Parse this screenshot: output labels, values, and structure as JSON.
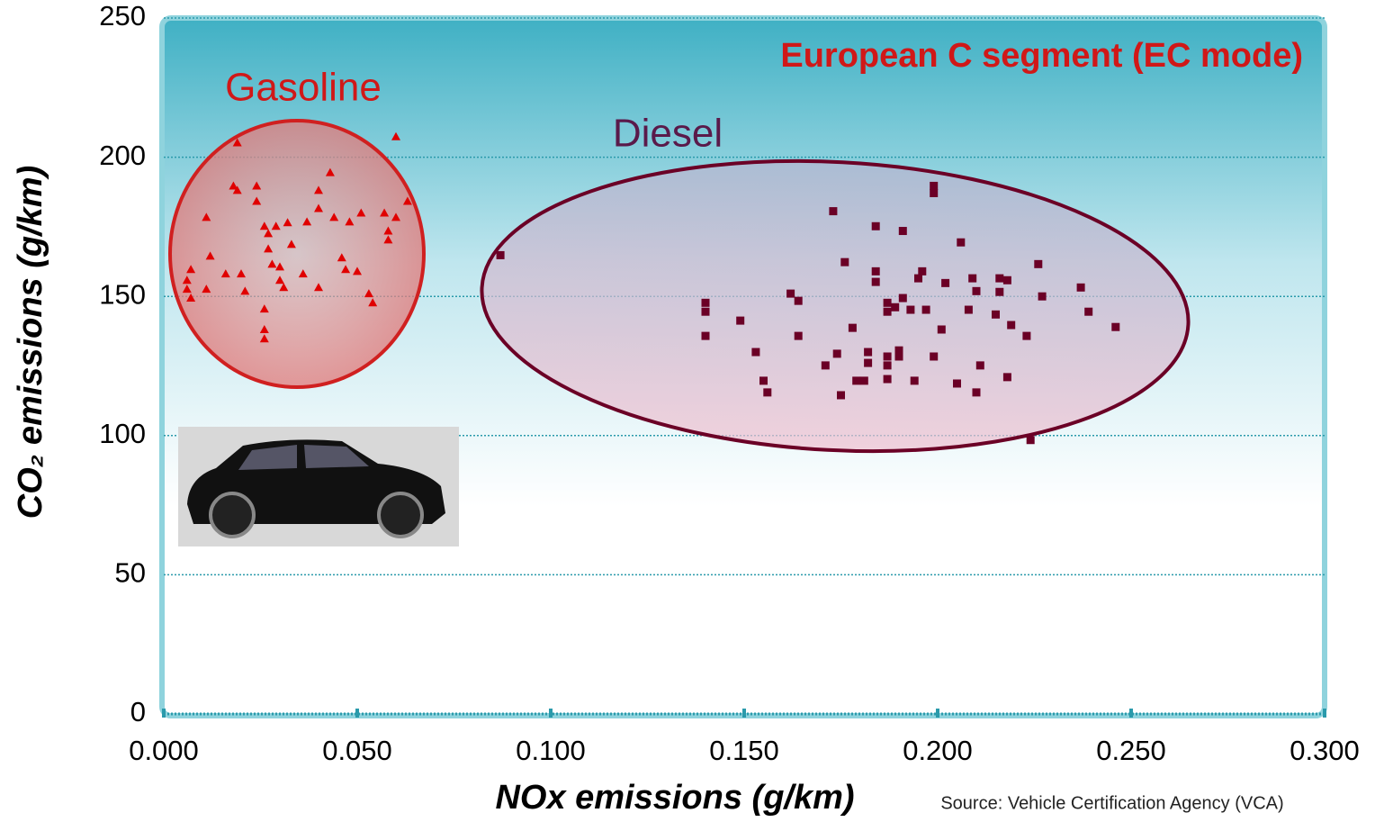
{
  "chart_data": {
    "type": "scatter",
    "title": "European C segment (EC mode)",
    "x_label": "NOx emissions (g/km)",
    "y_label": "CO₂ emissions (g/km)",
    "source": "Source: Vehicle Certification Agency (VCA)",
    "xlim": [
      0,
      0.3
    ],
    "ylim": [
      0,
      250
    ],
    "xticks": [
      {
        "value": 0,
        "label": "0.000"
      },
      {
        "value": 0.05,
        "label": "0.050"
      },
      {
        "value": 0.1,
        "label": "0.100"
      },
      {
        "value": 0.15,
        "label": "0.150"
      },
      {
        "value": 0.2,
        "label": "0.200"
      },
      {
        "value": 0.25,
        "label": "0.250"
      },
      {
        "value": 0.3,
        "label": "0.300"
      }
    ],
    "yticks": [
      0,
      50,
      100,
      150,
      200,
      250
    ],
    "grid": true,
    "series": [
      {
        "name": "Gasoline",
        "color": "#e00000",
        "marker": "triangle",
        "x": [
          0.019,
          0.06,
          0.018,
          0.019,
          0.024,
          0.024,
          0.011,
          0.007,
          0.006,
          0.006,
          0.007,
          0.011,
          0.012,
          0.016,
          0.02,
          0.021,
          0.026,
          0.027,
          0.029,
          0.032,
          0.027,
          0.028,
          0.03,
          0.03,
          0.031,
          0.033,
          0.036,
          0.04,
          0.04,
          0.04,
          0.043,
          0.044,
          0.048,
          0.046,
          0.047,
          0.05,
          0.051,
          0.053,
          0.054,
          0.057,
          0.058,
          0.058,
          0.06,
          0.063,
          0.026,
          0.026,
          0.026,
          0.037
        ],
        "values": [
          205.2,
          207.4,
          189.7,
          188.1,
          189.7,
          184.2,
          178.4,
          159.7,
          155.8,
          152.6,
          149.4,
          152.6,
          164.5,
          158.1,
          158.1,
          151.9,
          175.2,
          172.6,
          175.2,
          176.5,
          167.1,
          161.6,
          160.6,
          155.8,
          153.2,
          168.7,
          158.1,
          153.2,
          188.1,
          181.6,
          194.5,
          178.4,
          176.8,
          163.9,
          159.7,
          159.0,
          180.0,
          151.0,
          147.7,
          180.0,
          173.5,
          170.3,
          178.4,
          184.2,
          145.5,
          138.1,
          134.8,
          176.8
        ]
      },
      {
        "name": "Diesel",
        "color": "#6b0026",
        "marker": "square",
        "x": [
          0.087,
          0.199,
          0.199,
          0.173,
          0.184,
          0.191,
          0.206,
          0.176,
          0.184,
          0.184,
          0.196,
          0.195,
          0.202,
          0.209,
          0.21,
          0.216,
          0.218,
          0.226,
          0.237,
          0.227,
          0.216,
          0.162,
          0.164,
          0.14,
          0.14,
          0.149,
          0.187,
          0.187,
          0.189,
          0.191,
          0.193,
          0.197,
          0.208,
          0.215,
          0.239,
          0.246,
          0.201,
          0.219,
          0.223,
          0.178,
          0.164,
          0.14,
          0.153,
          0.174,
          0.182,
          0.182,
          0.171,
          0.187,
          0.187,
          0.19,
          0.19,
          0.199,
          0.211,
          0.155,
          0.156,
          0.175,
          0.179,
          0.181,
          0.187,
          0.194,
          0.205,
          0.21,
          0.218,
          0.224
        ],
        "values": [
          164.8,
          189.7,
          187.1,
          180.6,
          175.2,
          173.5,
          169.4,
          162.3,
          159.0,
          155.2,
          159.0,
          156.5,
          154.8,
          156.5,
          151.9,
          156.5,
          155.8,
          161.6,
          153.2,
          150.0,
          151.6,
          151.0,
          148.4,
          147.7,
          144.5,
          141.3,
          147.7,
          144.5,
          146.1,
          149.4,
          145.2,
          145.2,
          145.2,
          143.5,
          144.5,
          139.0,
          138.1,
          139.7,
          135.8,
          138.7,
          135.8,
          135.8,
          130.0,
          129.4,
          130.0,
          126.1,
          125.2,
          128.4,
          125.2,
          130.6,
          128.4,
          128.4,
          125.2,
          119.7,
          115.5,
          114.5,
          119.7,
          119.7,
          120.3,
          119.7,
          118.7,
          115.5,
          121.0,
          98.4
        ]
      }
    ]
  }
}
